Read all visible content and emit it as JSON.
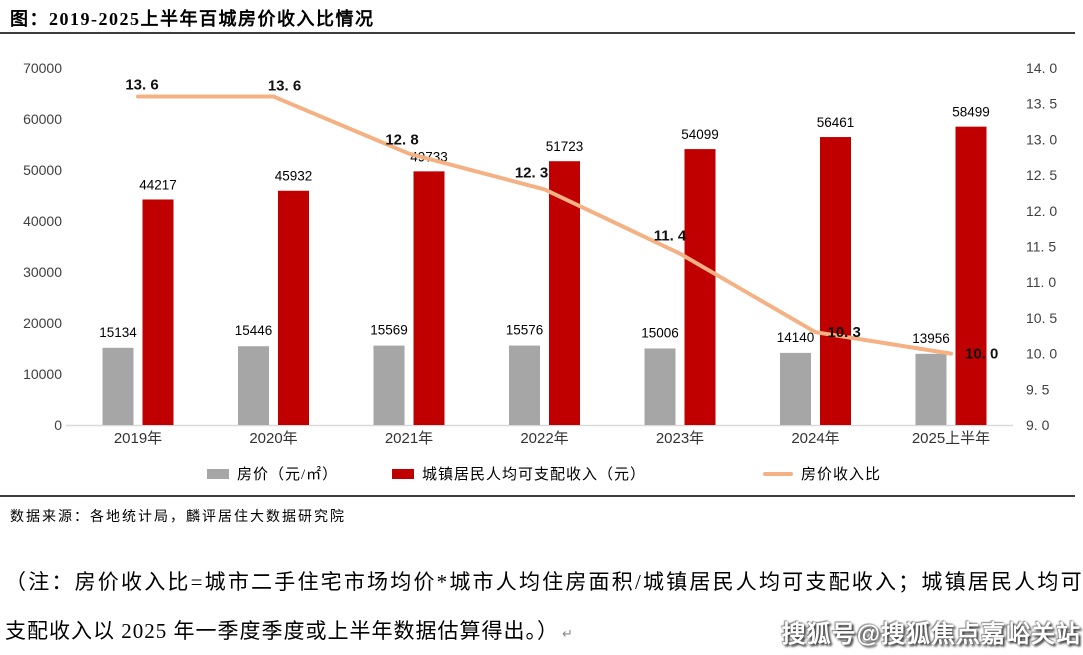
{
  "title": "图：2019-2025上半年百城房价收入比情况",
  "chart_data": {
    "type": "bar",
    "subtype": "combo-bar-line",
    "title": "图：2019-2025上半年百城房价收入比情况",
    "categories": [
      "2019年",
      "2020年",
      "2021年",
      "2022年",
      "2023年",
      "2024年",
      "2025上半年"
    ],
    "series": [
      {
        "name": "房价（元/㎡）",
        "type": "bar",
        "axis": "left",
        "color": "#A6A6A6",
        "values": [
          15134,
          15446,
          15569,
          15576,
          15006,
          14140,
          13956
        ]
      },
      {
        "name": "城镇居民人均可支配收入（元）",
        "type": "bar",
        "axis": "left",
        "color": "#C00000",
        "values": [
          44217,
          45932,
          49733,
          51723,
          54099,
          56461,
          58499
        ]
      },
      {
        "name": "房价收入比",
        "type": "line",
        "axis": "right",
        "color": "#F4B183",
        "values": [
          13.6,
          13.6,
          12.8,
          12.3,
          11.4,
          10.3,
          10.0
        ],
        "labels": [
          "13. 6",
          "13. 6",
          "12. 8",
          "12. 3",
          "11. 4",
          "10. 3",
          "10. 0"
        ]
      }
    ],
    "left_axis": {
      "min": 0,
      "max": 70000,
      "step": 10000,
      "ticks": [
        "0",
        "10000",
        "20000",
        "30000",
        "40000",
        "50000",
        "60000",
        "70000"
      ]
    },
    "right_axis": {
      "min": 9.0,
      "max": 14.0,
      "step": 0.5,
      "ticks": [
        "9. 0",
        "9. 5",
        "10. 0",
        "10. 5",
        "11. 0",
        "11. 5",
        "12. 0",
        "12. 5",
        "13. 0",
        "13. 5",
        "14. 0"
      ]
    },
    "grid": false,
    "legend_position": "bottom"
  },
  "legend": {
    "items": [
      {
        "label": "房价（元/㎡）",
        "swatch": "bar",
        "color": "#A6A6A6"
      },
      {
        "label": "城镇居民人均可支配收入（元）",
        "swatch": "bar",
        "color": "#C00000"
      },
      {
        "label": "房价收入比",
        "swatch": "line",
        "color": "#F4B183"
      }
    ]
  },
  "source": "数据来源：各地统计局，麟评居住大数据研究院",
  "note": {
    "line1": "（注：房价收入比=城市二手住宅市场均价*城市人均住房面积/城镇居民人均可支配收入；城镇居民人均可",
    "line2": "支配收入以 2025 年一季度季度或上半年数据估算得出。）",
    "paragraph_mark": "↵"
  },
  "watermark": "搜狐号@搜狐焦点嘉峪关站",
  "colors": {
    "bar_gray": "#A6A6A6",
    "bar_red": "#C00000",
    "line_orange": "#F4B183",
    "axis_line": "#D9D9D9",
    "separator": "#3D3D3D",
    "tick_text": "#404040"
  }
}
